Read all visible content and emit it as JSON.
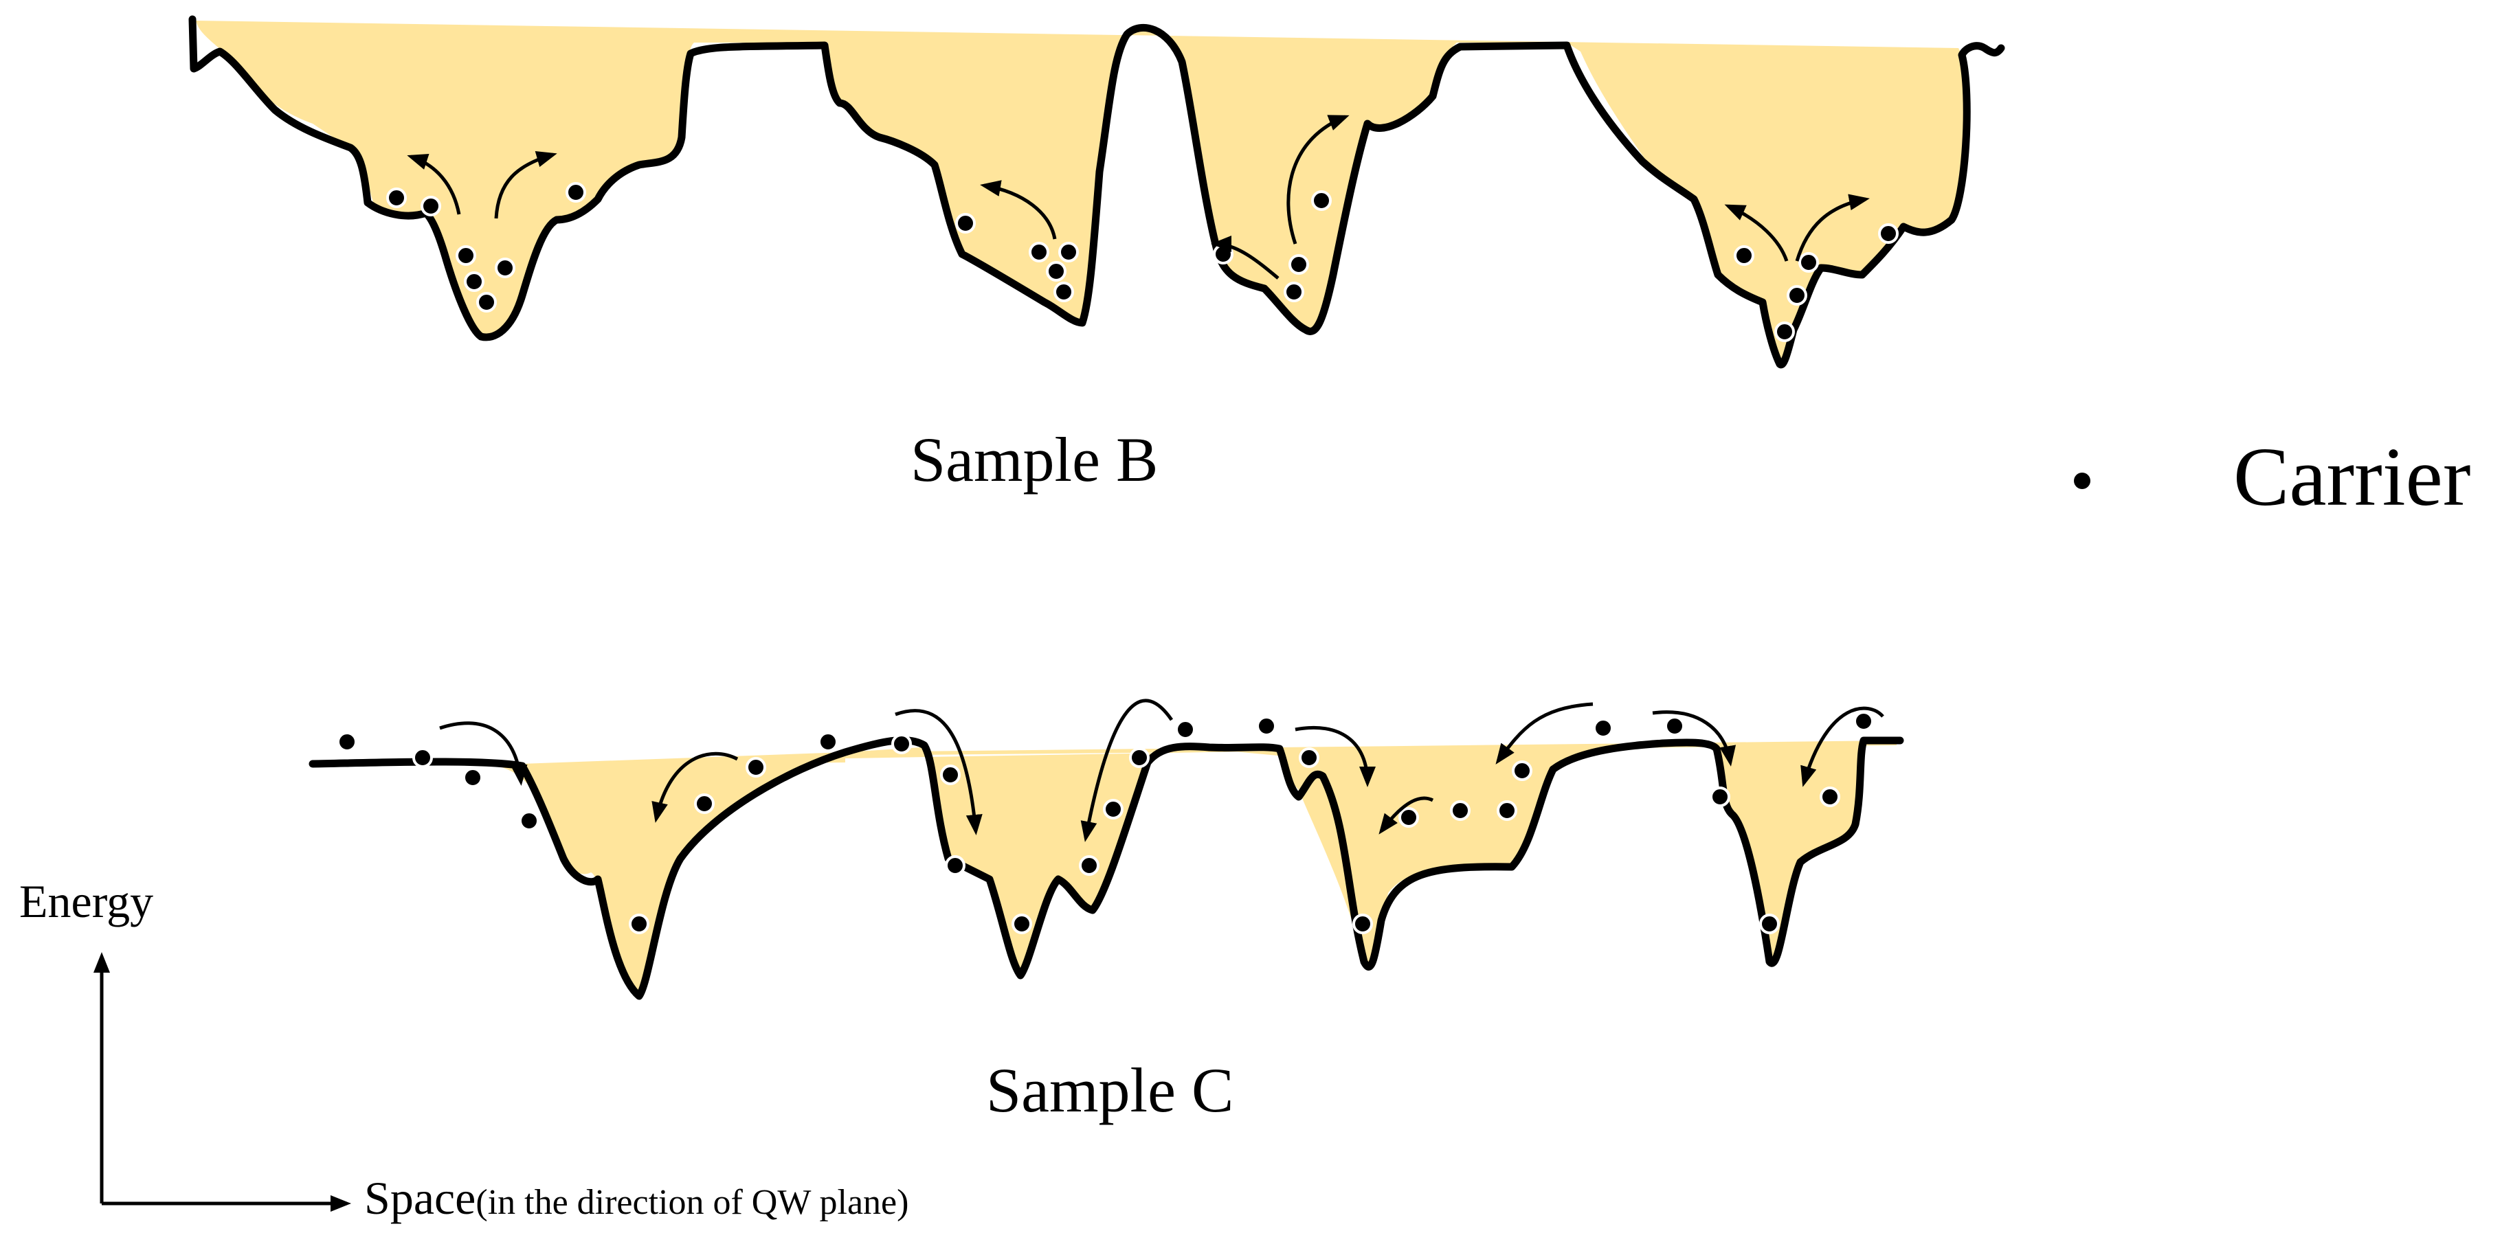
{
  "labels": {
    "sample_b": "Sample B",
    "sample_c": "Sample C",
    "legend_carrier": "Carrier",
    "axis_energy": "Energy",
    "axis_space_main": "Space",
    "axis_space_note": "(in  the direction of QW plane)"
  },
  "colors": {
    "fill": "#FFE59C",
    "stroke": "#000000",
    "carrier_fill": "#000000",
    "carrier_ring": "#ffffff"
  }
}
